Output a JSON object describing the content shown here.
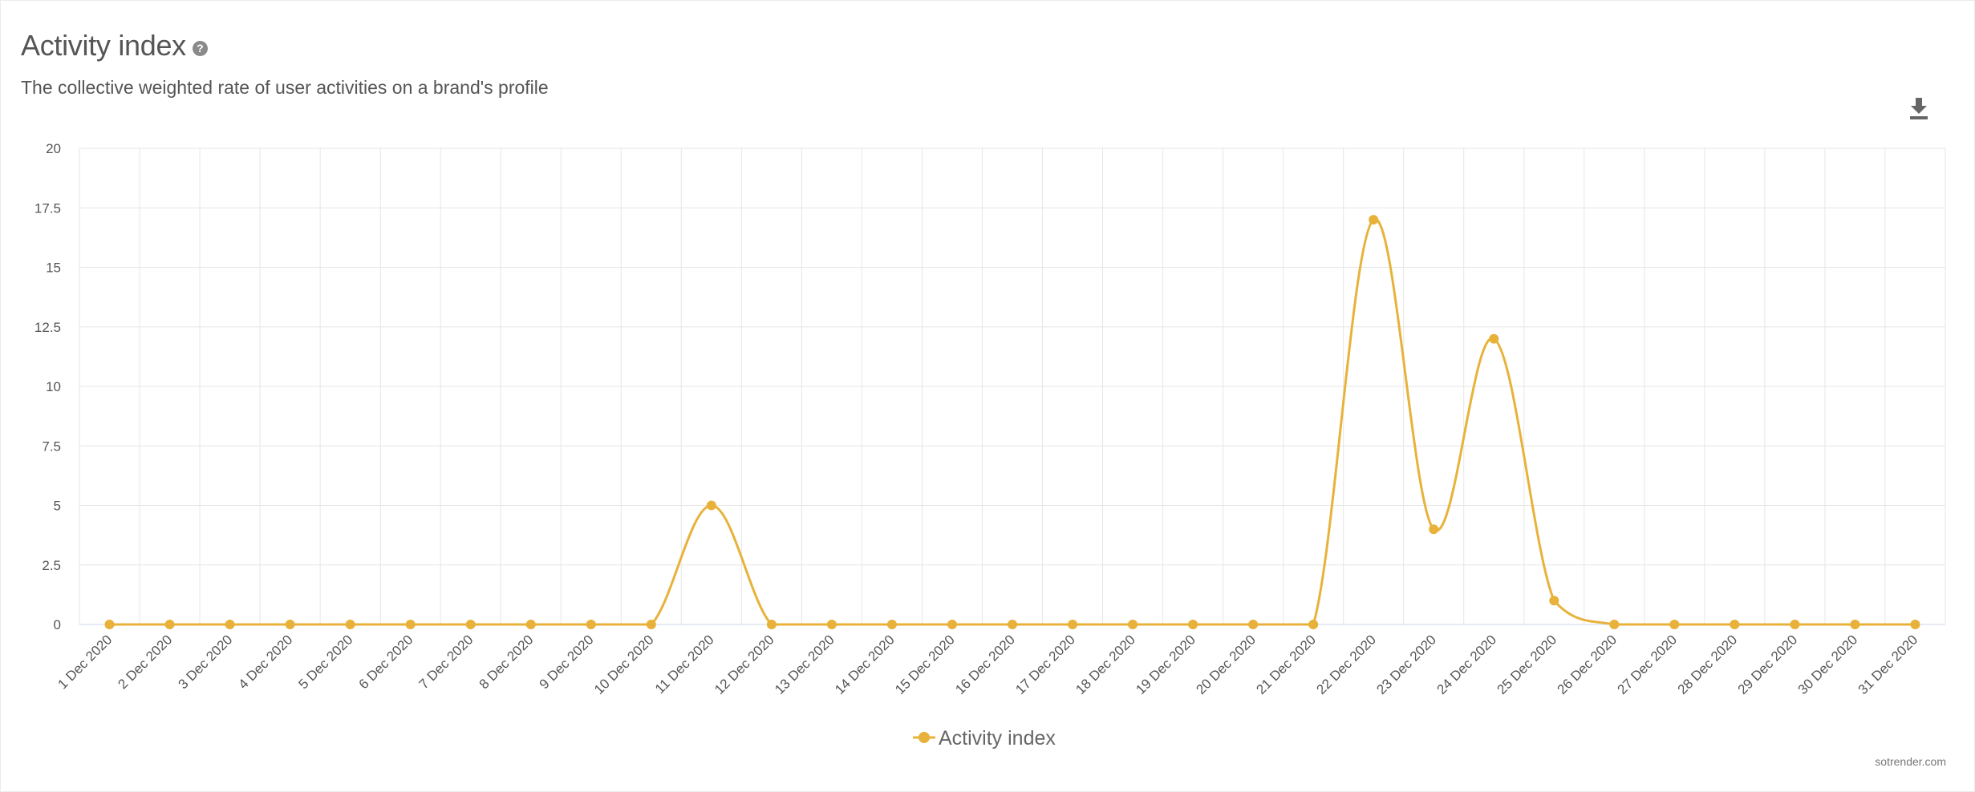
{
  "header": {
    "title": "Activity index",
    "subtitle": "The collective weighted rate of user activities on a brand's profile",
    "help_icon": "question-circle-icon",
    "download_icon": "download-icon"
  },
  "credit": "sotrender.com",
  "colors": {
    "series": "#e8b23a",
    "grid": "#e6e6e6",
    "axis": "#ccd6eb"
  },
  "chart_data": {
    "type": "line",
    "title": "Activity index",
    "subtitle": "The collective weighted rate of user activities on a brand's profile",
    "xlabel": "",
    "ylabel": "",
    "ylim": [
      0,
      20
    ],
    "y_ticks": [
      "0",
      "2.5",
      "5",
      "7.5",
      "10",
      "12.5",
      "15",
      "17.5",
      "20"
    ],
    "grid": true,
    "legend": "bottom-center",
    "categories": [
      "1 Dec 2020",
      "2 Dec 2020",
      "3 Dec 2020",
      "4 Dec 2020",
      "5 Dec 2020",
      "6 Dec 2020",
      "7 Dec 2020",
      "8 Dec 2020",
      "9 Dec 2020",
      "10 Dec 2020",
      "11 Dec 2020",
      "12 Dec 2020",
      "13 Dec 2020",
      "14 Dec 2020",
      "15 Dec 2020",
      "16 Dec 2020",
      "17 Dec 2020",
      "18 Dec 2020",
      "19 Dec 2020",
      "20 Dec 2020",
      "21 Dec 2020",
      "22 Dec 2020",
      "23 Dec 2020",
      "24 Dec 2020",
      "25 Dec 2020",
      "26 Dec 2020",
      "27 Dec 2020",
      "28 Dec 2020",
      "29 Dec 2020",
      "30 Dec 2020",
      "31 Dec 2020"
    ],
    "series": [
      {
        "name": "Activity index",
        "values": [
          0,
          0,
          0,
          0,
          0,
          0,
          0,
          0,
          0,
          0,
          5,
          0,
          0,
          0,
          0,
          0,
          0,
          0,
          0,
          0,
          0,
          17,
          4,
          12,
          1,
          0,
          0,
          0,
          0,
          0,
          0
        ]
      }
    ]
  }
}
